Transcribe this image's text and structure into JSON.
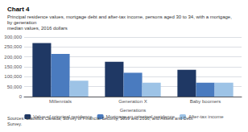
{
  "chart_data": {
    "type": "bar",
    "title": "Chart 4",
    "subtitle": [
      "Principal residence values, mortgage debt and after-tax income, persons aged 30 to 34, with a mortgage,",
      "by generation",
      "median values, 2016 dollars"
    ],
    "source": "Sources: Statistics Canada, Survey of Financial Security, 1999 and 2016, and Assets and Debt Survey.",
    "xlabel": "Generations",
    "categories": [
      "Millennials",
      "Generation X",
      "Baby boomers"
    ],
    "series": [
      {
        "name": "Value of principal residence",
        "color": "#1f3864",
        "values": [
          270000,
          175000,
          135000
        ]
      },
      {
        "name": "Mortgage on principal residence",
        "color": "#4a7bbf",
        "values": [
          215000,
          120000,
          70000
        ]
      },
      {
        "name": "After-tax income",
        "color": "#9dc3e6",
        "values": [
          80000,
          70000,
          70000
        ]
      }
    ],
    "ylim": [
      0,
      300000
    ],
    "yticks": [
      0,
      {
        "value": 50000,
        "label": "50,000"
      },
      {
        "value": 100000,
        "label": "100,000"
      },
      {
        "value": 150000,
        "label": "150,000"
      },
      {
        "value": 200000,
        "label": "200,000"
      },
      {
        "value": 250000,
        "label": "250,000"
      },
      {
        "value": 300000,
        "label": "300,000"
      }
    ],
    "grid": true,
    "legend": "bottom"
  }
}
